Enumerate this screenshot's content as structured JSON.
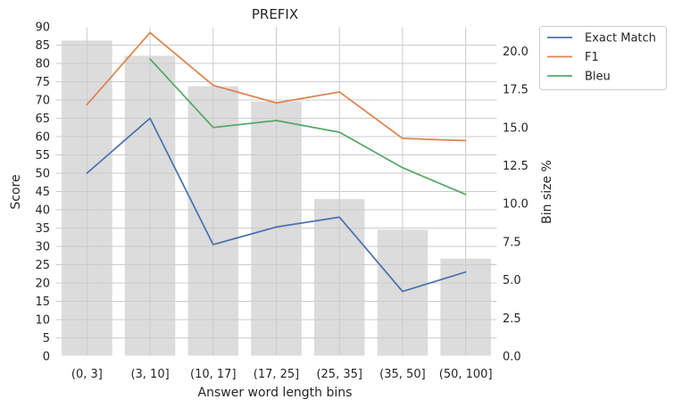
{
  "chart_data": {
    "type": "bar",
    "title": "PREFIX",
    "xlabel": "Answer word length bins",
    "ylabel": "Score",
    "y2label": "Bin size %",
    "categories": [
      "(0, 3]",
      "(3, 10]",
      "(10, 17]",
      "(17, 25]",
      "(25, 35]",
      "(35, 50]",
      "(50, 100]"
    ],
    "bin_size": [
      20.7,
      19.7,
      17.7,
      16.7,
      10.3,
      8.3,
      6.4
    ],
    "series": [
      {
        "name": "Exact Match",
        "color": "#4c72b0",
        "values": [
          50.0,
          65.0,
          30.5,
          35.3,
          38.0,
          17.7,
          23.0
        ]
      },
      {
        "name": "F1",
        "color": "#dd8452",
        "values": [
          68.7,
          88.4,
          74.0,
          69.2,
          72.2,
          59.5,
          58.9
        ]
      },
      {
        "name": "Bleu",
        "color": "#55a868",
        "values": [
          null,
          81.2,
          62.5,
          64.4,
          61.2,
          51.5,
          44.2
        ]
      }
    ],
    "ylim": [
      0,
      90
    ],
    "yticks": [
      "0",
      "5",
      "10",
      "15",
      "20",
      "25",
      "30",
      "35",
      "40",
      "45",
      "50",
      "55",
      "60",
      "65",
      "70",
      "75",
      "80",
      "85",
      "90"
    ],
    "y2lim": [
      0,
      21.6
    ],
    "y2ticks": [
      "0.0",
      "2.5",
      "5.0",
      "7.5",
      "10.0",
      "12.5",
      "15.0",
      "17.5",
      "20.0"
    ],
    "bar_color": "#dcdcdc",
    "grid": true,
    "legend_position": "outside-top-right"
  }
}
